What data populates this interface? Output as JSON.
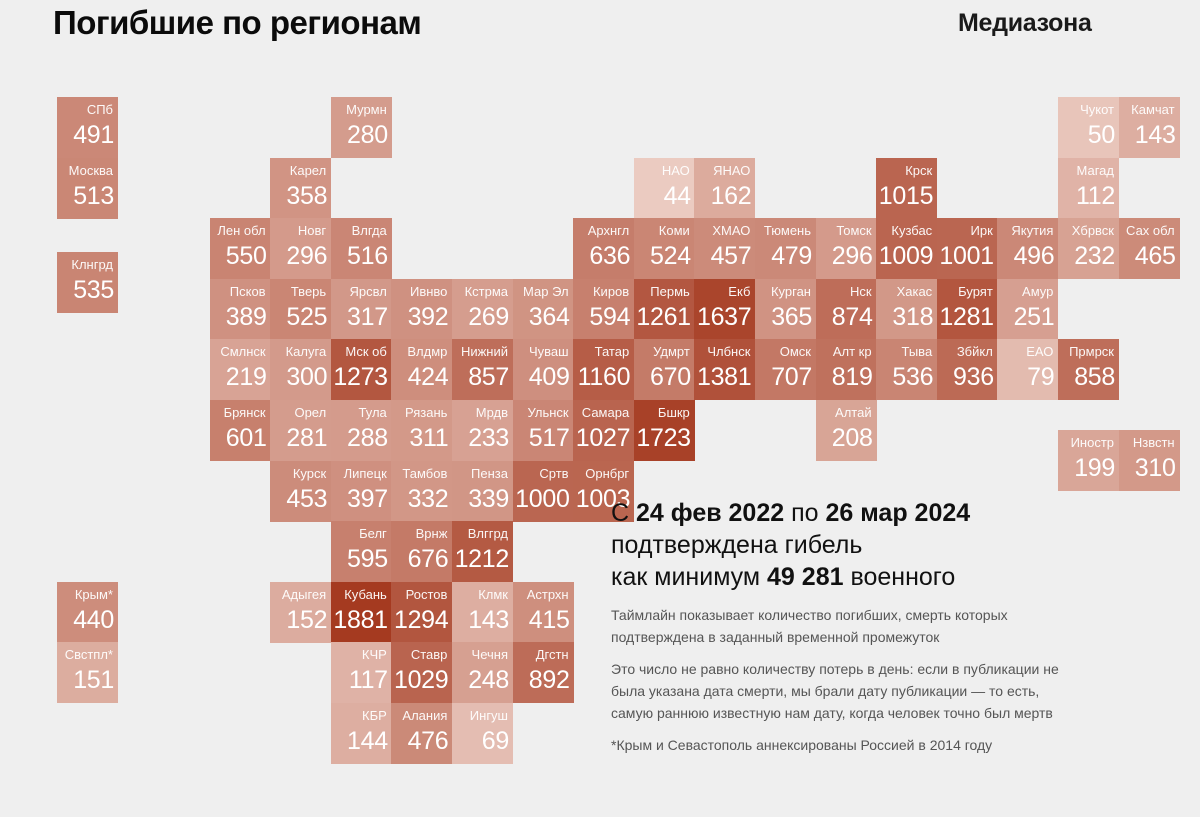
{
  "header": {
    "title": "Погибшие по регионам",
    "brand": "Медиазона"
  },
  "summary": {
    "prefix": "С",
    "date_from": "24 фев 2022",
    "middle": "по",
    "date_to": "26 мар 2024",
    "line2": "подтверждена гибель",
    "line3_prefix": "как минимум",
    "total": "49 281",
    "line3_suffix": "военного"
  },
  "notes": {
    "p1": "Таймлайн показывает количество погибших, смерть которых подтверждена в заданный временной промежуток",
    "p2": "Это число не равно количеству потерь в день: если в публикации не была указана дата смерти, мы брали дату публикации — то есть, самую раннюю известную нам дату, когда человек точно был мертв",
    "p3": "*Крым и Севастополь аннексированы Россией в 2014 году"
  },
  "colors": {
    "low": "#ebcbc1",
    "high": "#a53a20",
    "background": "#efefef"
  },
  "chart_data": {
    "type": "heatmap",
    "title": "Погибшие по регионам",
    "subtitle": "С 24 фев 2022 по 26 мар 2024 подтверждена гибель как минимум 49 281 военного",
    "value_range": [
      44,
      1881
    ],
    "cells": [
      {
        "label": "СПб",
        "value": 491,
        "col": -1,
        "row": 0
      },
      {
        "label": "Москва",
        "value": 513,
        "col": -1,
        "row": 1
      },
      {
        "label": "Клнгрд",
        "value": 535,
        "col": -1,
        "row": 2.55
      },
      {
        "label": "Крым*",
        "value": 440,
        "col": -1,
        "row": 8
      },
      {
        "label": "Свстпл*",
        "value": 151,
        "col": -1,
        "row": 9
      },
      {
        "label": "Мурмн",
        "value": 280,
        "col": 3,
        "row": 0
      },
      {
        "label": "Карел",
        "value": 358,
        "col": 2,
        "row": 1
      },
      {
        "label": "Лен обл",
        "value": 550,
        "col": 1,
        "row": 2
      },
      {
        "label": "Новг",
        "value": 296,
        "col": 2,
        "row": 2
      },
      {
        "label": "Влгда",
        "value": 516,
        "col": 3,
        "row": 2
      },
      {
        "label": "Псков",
        "value": 389,
        "col": 1,
        "row": 3
      },
      {
        "label": "Тверь",
        "value": 525,
        "col": 2,
        "row": 3
      },
      {
        "label": "Ярсвл",
        "value": 317,
        "col": 3,
        "row": 3
      },
      {
        "label": "Ивнво",
        "value": 392,
        "col": 4,
        "row": 3
      },
      {
        "label": "Кстрма",
        "value": 269,
        "col": 5,
        "row": 3
      },
      {
        "label": "Мар Эл",
        "value": 364,
        "col": 6,
        "row": 3
      },
      {
        "label": "Киров",
        "value": 594,
        "col": 7,
        "row": 3
      },
      {
        "label": "Пермь",
        "value": 1261,
        "col": 8,
        "row": 3
      },
      {
        "label": "Екб",
        "value": 1637,
        "col": 9,
        "row": 3
      },
      {
        "label": "Курган",
        "value": 365,
        "col": 10,
        "row": 3
      },
      {
        "label": "Нск",
        "value": 874,
        "col": 11,
        "row": 3
      },
      {
        "label": "Хакас",
        "value": 318,
        "col": 12,
        "row": 3
      },
      {
        "label": "Бурят",
        "value": 1281,
        "col": 13,
        "row": 3
      },
      {
        "label": "Амур",
        "value": 251,
        "col": 14,
        "row": 3
      },
      {
        "label": "НАО",
        "value": 44,
        "col": 8,
        "row": 1
      },
      {
        "label": "ЯНАО",
        "value": 162,
        "col": 9,
        "row": 1
      },
      {
        "label": "Крск",
        "value": 1015,
        "col": 12,
        "row": 1
      },
      {
        "label": "Чукот",
        "value": 50,
        "col": 15,
        "row": 0
      },
      {
        "label": "Камчат",
        "value": 143,
        "col": 16,
        "row": 0
      },
      {
        "label": "Магад",
        "value": 112,
        "col": 15,
        "row": 1
      },
      {
        "label": "Архнгл",
        "value": 636,
        "col": 7,
        "row": 2
      },
      {
        "label": "Коми",
        "value": 524,
        "col": 8,
        "row": 2
      },
      {
        "label": "ХМАО",
        "value": 457,
        "col": 9,
        "row": 2
      },
      {
        "label": "Тюмень",
        "value": 479,
        "col": 10,
        "row": 2
      },
      {
        "label": "Томск",
        "value": 296,
        "col": 11,
        "row": 2
      },
      {
        "label": "Кузбас",
        "value": 1009,
        "col": 12,
        "row": 2
      },
      {
        "label": "Ирк",
        "value": 1001,
        "col": 13,
        "row": 2
      },
      {
        "label": "Якутия",
        "value": 496,
        "col": 14,
        "row": 2
      },
      {
        "label": "Хбрвск",
        "value": 232,
        "col": 15,
        "row": 2
      },
      {
        "label": "Сах обл",
        "value": 465,
        "col": 16,
        "row": 2
      },
      {
        "label": "Смлнск",
        "value": 219,
        "col": 1,
        "row": 4
      },
      {
        "label": "Калуга",
        "value": 300,
        "col": 2,
        "row": 4
      },
      {
        "label": "Мск об",
        "value": 1273,
        "col": 3,
        "row": 4
      },
      {
        "label": "Влдмр",
        "value": 424,
        "col": 4,
        "row": 4
      },
      {
        "label": "Нижний",
        "value": 857,
        "col": 5,
        "row": 4
      },
      {
        "label": "Чуваш",
        "value": 409,
        "col": 6,
        "row": 4
      },
      {
        "label": "Татар",
        "value": 1160,
        "col": 7,
        "row": 4
      },
      {
        "label": "Удмрт",
        "value": 670,
        "col": 8,
        "row": 4
      },
      {
        "label": "Члбнск",
        "value": 1381,
        "col": 9,
        "row": 4
      },
      {
        "label": "Омск",
        "value": 707,
        "col": 10,
        "row": 4
      },
      {
        "label": "Алт кр",
        "value": 819,
        "col": 11,
        "row": 4
      },
      {
        "label": "Тыва",
        "value": 536,
        "col": 12,
        "row": 4
      },
      {
        "label": "Збйкл",
        "value": 936,
        "col": 13,
        "row": 4
      },
      {
        "label": "ЕАО",
        "value": 79,
        "col": 14,
        "row": 4
      },
      {
        "label": "Прмрск",
        "value": 858,
        "col": 15,
        "row": 4
      },
      {
        "label": "Брянск",
        "value": 601,
        "col": 1,
        "row": 5
      },
      {
        "label": "Орел",
        "value": 281,
        "col": 2,
        "row": 5
      },
      {
        "label": "Тула",
        "value": 288,
        "col": 3,
        "row": 5
      },
      {
        "label": "Рязань",
        "value": 311,
        "col": 4,
        "row": 5
      },
      {
        "label": "Мрдв",
        "value": 233,
        "col": 5,
        "row": 5
      },
      {
        "label": "Ульнск",
        "value": 517,
        "col": 6,
        "row": 5
      },
      {
        "label": "Самара",
        "value": 1027,
        "col": 7,
        "row": 5
      },
      {
        "label": "Бшкр",
        "value": 1723,
        "col": 8,
        "row": 5
      },
      {
        "label": "Алтай",
        "value": 208,
        "col": 11,
        "row": 5
      },
      {
        "label": "Иностр",
        "value": 199,
        "col": 15,
        "row": 5.5
      },
      {
        "label": "Нзвстн",
        "value": 310,
        "col": 16,
        "row": 5.5
      },
      {
        "label": "Курск",
        "value": 453,
        "col": 2,
        "row": 6
      },
      {
        "label": "Липецк",
        "value": 397,
        "col": 3,
        "row": 6
      },
      {
        "label": "Тамбов",
        "value": 332,
        "col": 4,
        "row": 6
      },
      {
        "label": "Пенза",
        "value": 339,
        "col": 5,
        "row": 6
      },
      {
        "label": "Сртв",
        "value": 1000,
        "col": 6,
        "row": 6
      },
      {
        "label": "Орнбрг",
        "value": 1003,
        "col": 7,
        "row": 6
      },
      {
        "label": "Белг",
        "value": 595,
        "col": 3,
        "row": 7
      },
      {
        "label": "Врнж",
        "value": 676,
        "col": 4,
        "row": 7
      },
      {
        "label": "Влггрд",
        "value": 1212,
        "col": 5,
        "row": 7
      },
      {
        "label": "Адыгея",
        "value": 152,
        "col": 2,
        "row": 8
      },
      {
        "label": "Кубань",
        "value": 1881,
        "col": 3,
        "row": 8
      },
      {
        "label": "Ростов",
        "value": 1294,
        "col": 4,
        "row": 8
      },
      {
        "label": "Клмк",
        "value": 143,
        "col": 5,
        "row": 8
      },
      {
        "label": "Астрхн",
        "value": 415,
        "col": 6,
        "row": 8
      },
      {
        "label": "КЧР",
        "value": 117,
        "col": 3,
        "row": 9
      },
      {
        "label": "Ставр",
        "value": 1029,
        "col": 4,
        "row": 9
      },
      {
        "label": "Чечня",
        "value": 248,
        "col": 5,
        "row": 9
      },
      {
        "label": "Дгстн",
        "value": 892,
        "col": 6,
        "row": 9
      },
      {
        "label": "КБР",
        "value": 144,
        "col": 3,
        "row": 10
      },
      {
        "label": "Алания",
        "value": 476,
        "col": 4,
        "row": 10
      },
      {
        "label": "Ингуш",
        "value": 69,
        "col": 5,
        "row": 10
      }
    ]
  }
}
